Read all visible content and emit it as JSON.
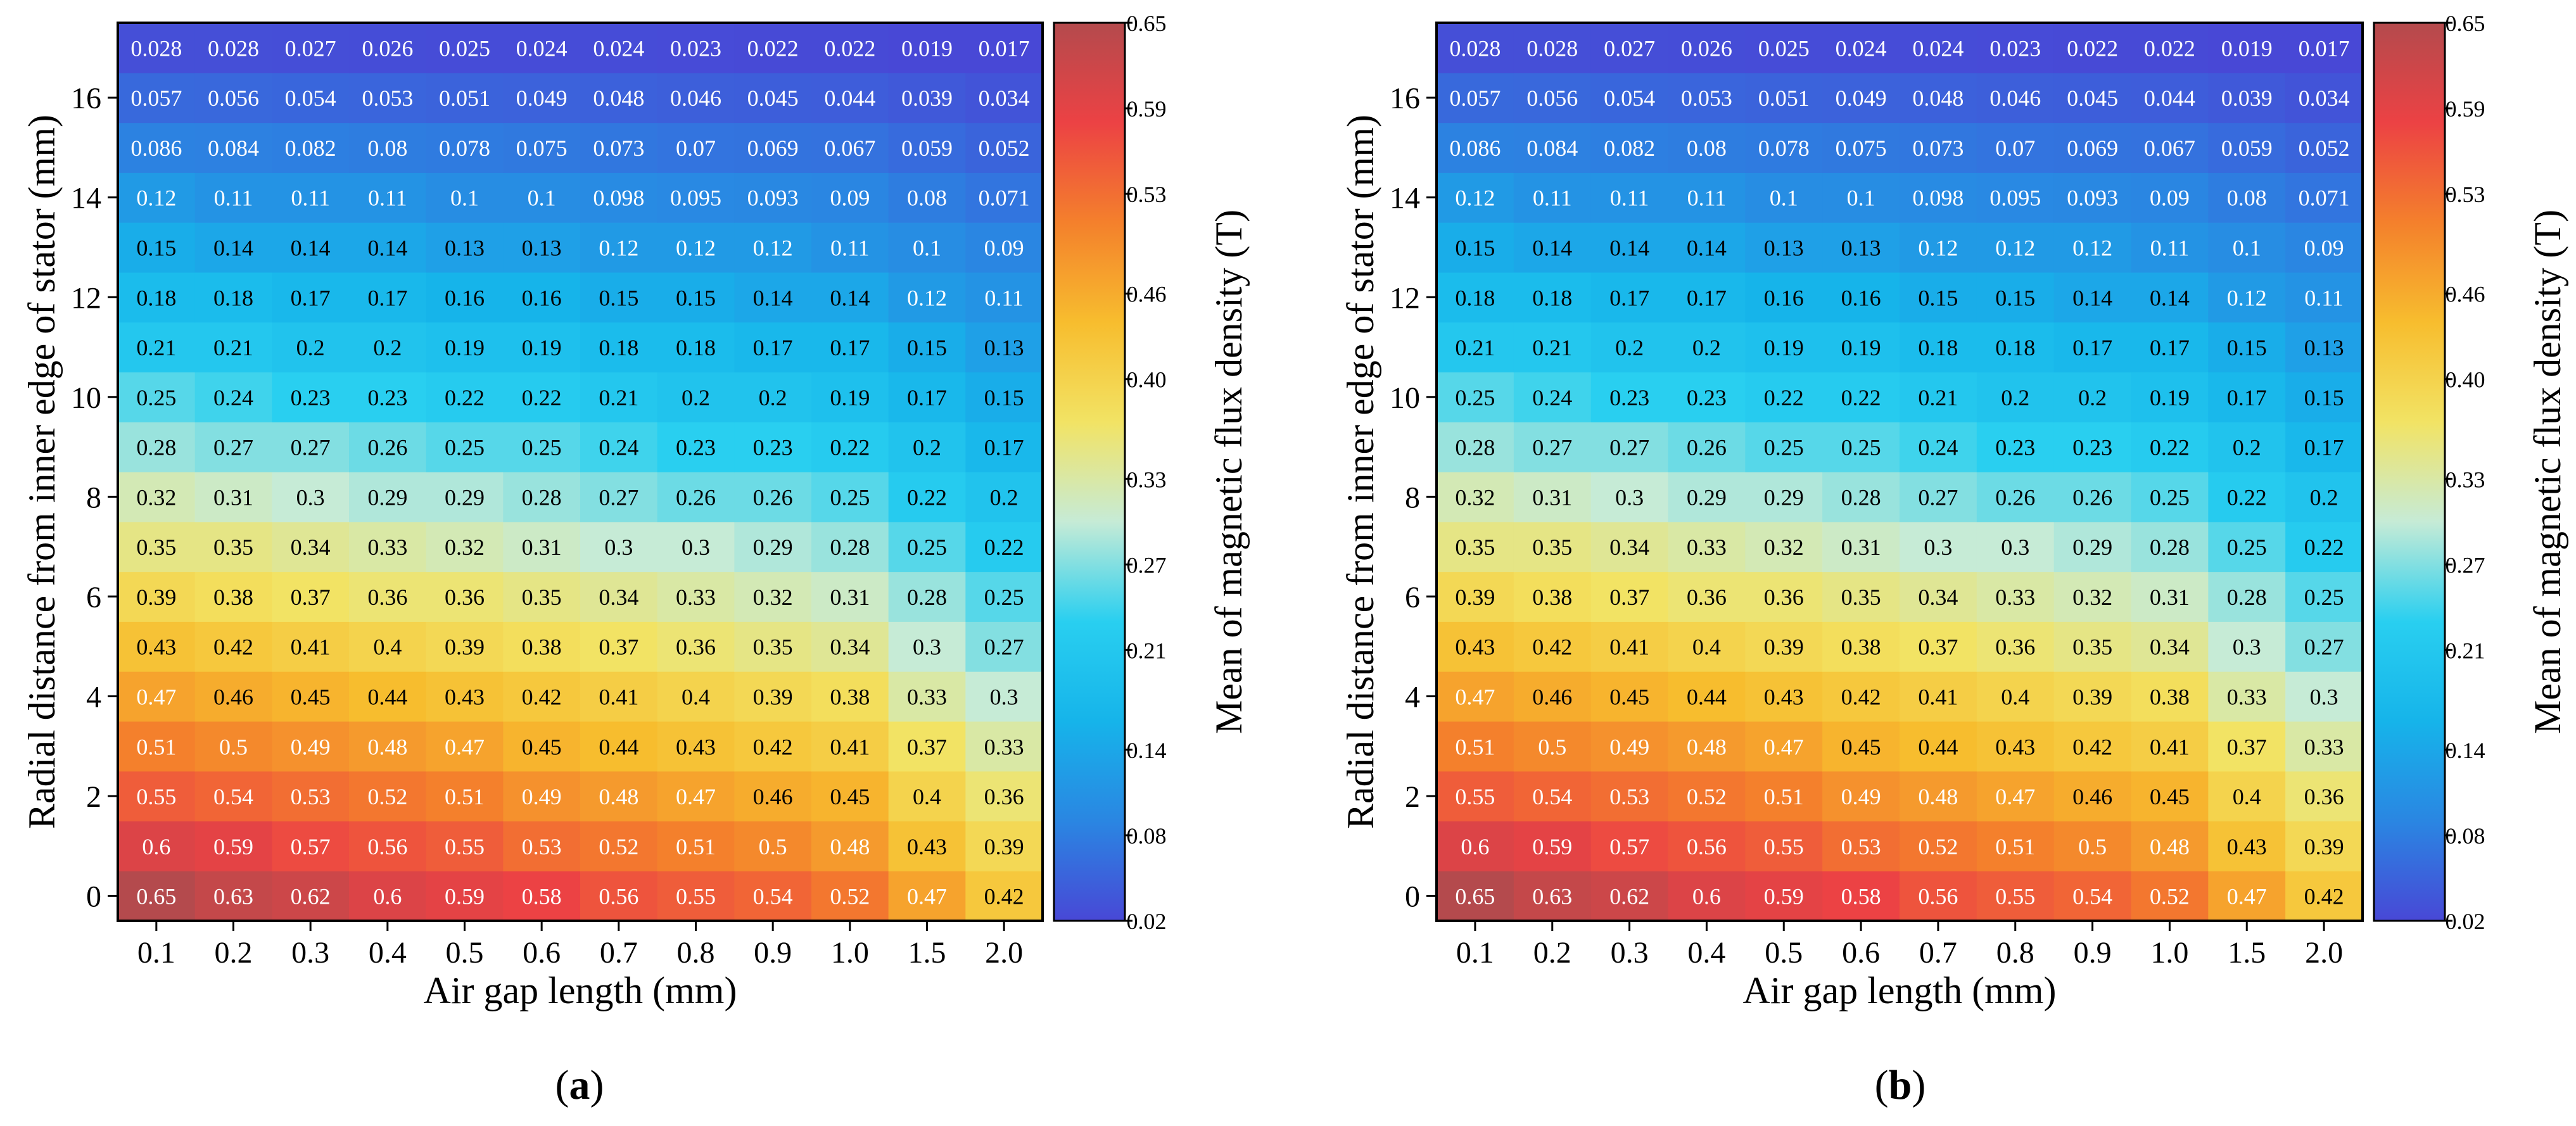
{
  "colors": {
    "colormap": [
      "#4848d6",
      "#2a86e2",
      "#16b4ea",
      "#29cff0",
      "#c6ebd6",
      "#f2e364",
      "#f7bd2e",
      "#f4802c",
      "#ec4244",
      "#b44a4d"
    ],
    "frame": "#000000",
    "light_text": "#ffffff",
    "dark_text": "#000000"
  },
  "chart_data": [
    {
      "type": "heatmap",
      "panel_label": "(a)",
      "panel_letter": "a",
      "xlabel": "Air gap length (mm)",
      "ylabel": "Radial distance from inner edge of stator (mm)",
      "colorbar_label": "Mean of magnetic flux density (T)",
      "colorbar_ticks": [
        "0.65",
        "0.59",
        "0.53",
        "0.46",
        "0.40",
        "0.33",
        "0.27",
        "0.21",
        "0.14",
        "0.08",
        "0.02"
      ],
      "clim": [
        0.02,
        0.65
      ],
      "x_categories": [
        "0.1",
        "0.2",
        "0.3",
        "0.4",
        "0.5",
        "0.6",
        "0.7",
        "0.8",
        "0.9",
        "1.0",
        "1.5",
        "2.0"
      ],
      "y_values": [
        0,
        1,
        2,
        3,
        4,
        5,
        6,
        7,
        8,
        9,
        10,
        11,
        12,
        13,
        14,
        15,
        16,
        17
      ],
      "y_ticks": [
        0,
        2,
        4,
        6,
        8,
        10,
        12,
        14,
        16
      ],
      "ylim": [
        -0.5,
        17.5
      ],
      "cell_labels": [
        [
          "0.65",
          "0.63",
          "0.62",
          "0.6",
          "0.59",
          "0.58",
          "0.56",
          "0.55",
          "0.54",
          "0.52",
          "0.47",
          "0.42"
        ],
        [
          "0.6",
          "0.59",
          "0.57",
          "0.56",
          "0.55",
          "0.53",
          "0.52",
          "0.51",
          "0.5",
          "0.48",
          "0.43",
          "0.39"
        ],
        [
          "0.55",
          "0.54",
          "0.53",
          "0.52",
          "0.51",
          "0.49",
          "0.48",
          "0.47",
          "0.46",
          "0.45",
          "0.4",
          "0.36"
        ],
        [
          "0.51",
          "0.5",
          "0.49",
          "0.48",
          "0.47",
          "0.45",
          "0.44",
          "0.43",
          "0.42",
          "0.41",
          "0.37",
          "0.33"
        ],
        [
          "0.47",
          "0.46",
          "0.45",
          "0.44",
          "0.43",
          "0.42",
          "0.41",
          "0.4",
          "0.39",
          "0.38",
          "0.33",
          "0.3"
        ],
        [
          "0.43",
          "0.42",
          "0.41",
          "0.4",
          "0.39",
          "0.38",
          "0.37",
          "0.36",
          "0.35",
          "0.34",
          "0.3",
          "0.27"
        ],
        [
          "0.39",
          "0.38",
          "0.37",
          "0.36",
          "0.36",
          "0.35",
          "0.34",
          "0.33",
          "0.32",
          "0.31",
          "0.28",
          "0.25"
        ],
        [
          "0.35",
          "0.35",
          "0.34",
          "0.33",
          "0.32",
          "0.31",
          "0.3",
          "0.3",
          "0.29",
          "0.28",
          "0.25",
          "0.22"
        ],
        [
          "0.32",
          "0.31",
          "0.3",
          "0.29",
          "0.29",
          "0.28",
          "0.27",
          "0.26",
          "0.26",
          "0.25",
          "0.22",
          "0.2"
        ],
        [
          "0.28",
          "0.27",
          "0.27",
          "0.26",
          "0.25",
          "0.25",
          "0.24",
          "0.23",
          "0.23",
          "0.22",
          "0.2",
          "0.17"
        ],
        [
          "0.25",
          "0.24",
          "0.23",
          "0.23",
          "0.22",
          "0.22",
          "0.21",
          "0.2",
          "0.2",
          "0.19",
          "0.17",
          "0.15"
        ],
        [
          "0.21",
          "0.21",
          "0.2",
          "0.2",
          "0.19",
          "0.19",
          "0.18",
          "0.18",
          "0.17",
          "0.17",
          "0.15",
          "0.13"
        ],
        [
          "0.18",
          "0.18",
          "0.17",
          "0.17",
          "0.16",
          "0.16",
          "0.15",
          "0.15",
          "0.14",
          "0.14",
          "0.12",
          "0.11"
        ],
        [
          "0.15",
          "0.14",
          "0.14",
          "0.14",
          "0.13",
          "0.13",
          "0.12",
          "0.12",
          "0.12",
          "0.11",
          "0.1",
          "0.09"
        ],
        [
          "0.12",
          "0.11",
          "0.11",
          "0.11",
          "0.1",
          "0.1",
          "0.098",
          "0.095",
          "0.093",
          "0.09",
          "0.08",
          "0.071"
        ],
        [
          "0.086",
          "0.084",
          "0.082",
          "0.08",
          "0.078",
          "0.075",
          "0.073",
          "0.07",
          "0.069",
          "0.067",
          "0.059",
          "0.052"
        ],
        [
          "0.057",
          "0.056",
          "0.054",
          "0.053",
          "0.051",
          "0.049",
          "0.048",
          "0.046",
          "0.045",
          "0.044",
          "0.039",
          "0.034"
        ],
        [
          "0.028",
          "0.028",
          "0.027",
          "0.026",
          "0.025",
          "0.024",
          "0.024",
          "0.023",
          "0.022",
          "0.022",
          "0.019",
          "0.017"
        ]
      ]
    },
    {
      "type": "heatmap",
      "panel_label": "(b)",
      "panel_letter": "b",
      "xlabel": "Air gap length (mm)",
      "ylabel": "Radial distance from inner edge of stator (mm)",
      "colorbar_label": "Mean of magnetic flux density (T)",
      "colorbar_ticks": [
        "0.65",
        "0.59",
        "0.53",
        "0.46",
        "0.40",
        "0.33",
        "0.27",
        "0.21",
        "0.14",
        "0.08",
        "0.02"
      ],
      "clim": [
        0.02,
        0.65
      ],
      "x_categories": [
        "0.1",
        "0.2",
        "0.3",
        "0.4",
        "0.5",
        "0.6",
        "0.7",
        "0.8",
        "0.9",
        "1.0",
        "1.5",
        "2.0"
      ],
      "y_values": [
        0,
        1,
        2,
        3,
        4,
        5,
        6,
        7,
        8,
        9,
        10,
        11,
        12,
        13,
        14,
        15,
        16,
        17
      ],
      "y_ticks": [
        0,
        2,
        4,
        6,
        8,
        10,
        12,
        14,
        16
      ],
      "ylim": [
        -0.5,
        17.5
      ],
      "cell_labels": [
        [
          "0.65",
          "0.63",
          "0.62",
          "0.6",
          "0.59",
          "0.58",
          "0.56",
          "0.55",
          "0.54",
          "0.52",
          "0.47",
          "0.42"
        ],
        [
          "0.6",
          "0.59",
          "0.57",
          "0.56",
          "0.55",
          "0.53",
          "0.52",
          "0.51",
          "0.5",
          "0.48",
          "0.43",
          "0.39"
        ],
        [
          "0.55",
          "0.54",
          "0.53",
          "0.52",
          "0.51",
          "0.49",
          "0.48",
          "0.47",
          "0.46",
          "0.45",
          "0.4",
          "0.36"
        ],
        [
          "0.51",
          "0.5",
          "0.49",
          "0.48",
          "0.47",
          "0.45",
          "0.44",
          "0.43",
          "0.42",
          "0.41",
          "0.37",
          "0.33"
        ],
        [
          "0.47",
          "0.46",
          "0.45",
          "0.44",
          "0.43",
          "0.42",
          "0.41",
          "0.4",
          "0.39",
          "0.38",
          "0.33",
          "0.3"
        ],
        [
          "0.43",
          "0.42",
          "0.41",
          "0.4",
          "0.39",
          "0.38",
          "0.37",
          "0.36",
          "0.35",
          "0.34",
          "0.3",
          "0.27"
        ],
        [
          "0.39",
          "0.38",
          "0.37",
          "0.36",
          "0.36",
          "0.35",
          "0.34",
          "0.33",
          "0.32",
          "0.31",
          "0.28",
          "0.25"
        ],
        [
          "0.35",
          "0.35",
          "0.34",
          "0.33",
          "0.32",
          "0.31",
          "0.3",
          "0.3",
          "0.29",
          "0.28",
          "0.25",
          "0.22"
        ],
        [
          "0.32",
          "0.31",
          "0.3",
          "0.29",
          "0.29",
          "0.28",
          "0.27",
          "0.26",
          "0.26",
          "0.25",
          "0.22",
          "0.2"
        ],
        [
          "0.28",
          "0.27",
          "0.27",
          "0.26",
          "0.25",
          "0.25",
          "0.24",
          "0.23",
          "0.23",
          "0.22",
          "0.2",
          "0.17"
        ],
        [
          "0.25",
          "0.24",
          "0.23",
          "0.23",
          "0.22",
          "0.22",
          "0.21",
          "0.2",
          "0.2",
          "0.19",
          "0.17",
          "0.15"
        ],
        [
          "0.21",
          "0.21",
          "0.2",
          "0.2",
          "0.19",
          "0.19",
          "0.18",
          "0.18",
          "0.17",
          "0.17",
          "0.15",
          "0.13"
        ],
        [
          "0.18",
          "0.18",
          "0.17",
          "0.17",
          "0.16",
          "0.16",
          "0.15",
          "0.15",
          "0.14",
          "0.14",
          "0.12",
          "0.11"
        ],
        [
          "0.15",
          "0.14",
          "0.14",
          "0.14",
          "0.13",
          "0.13",
          "0.12",
          "0.12",
          "0.12",
          "0.11",
          "0.1",
          "0.09"
        ],
        [
          "0.12",
          "0.11",
          "0.11",
          "0.11",
          "0.1",
          "0.1",
          "0.098",
          "0.095",
          "0.093",
          "0.09",
          "0.08",
          "0.071"
        ],
        [
          "0.086",
          "0.084",
          "0.082",
          "0.08",
          "0.078",
          "0.075",
          "0.073",
          "0.07",
          "0.069",
          "0.067",
          "0.059",
          "0.052"
        ],
        [
          "0.057",
          "0.056",
          "0.054",
          "0.053",
          "0.051",
          "0.049",
          "0.048",
          "0.046",
          "0.045",
          "0.044",
          "0.039",
          "0.034"
        ],
        [
          "0.028",
          "0.028",
          "0.027",
          "0.026",
          "0.025",
          "0.024",
          "0.024",
          "0.023",
          "0.022",
          "0.022",
          "0.019",
          "0.017"
        ]
      ]
    }
  ]
}
